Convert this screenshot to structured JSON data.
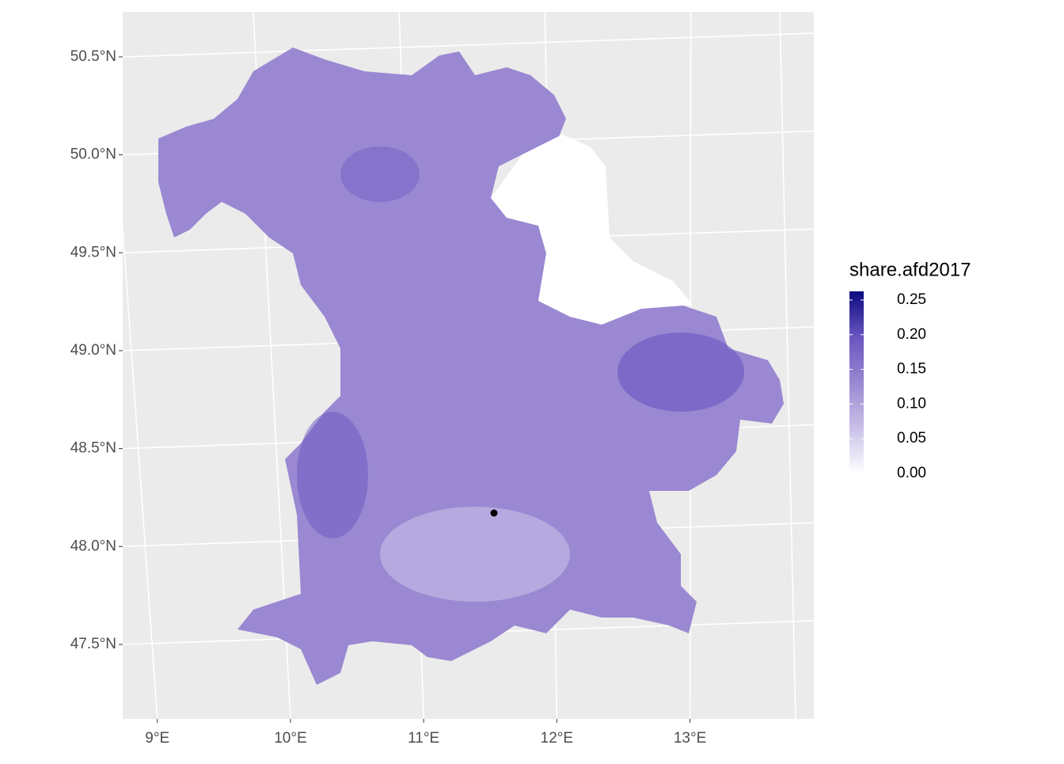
{
  "chart_data": {
    "type": "choropleth",
    "xlim": [
      8.74,
      13.93
    ],
    "ylim": [
      47.12,
      50.73
    ],
    "xticks": [
      {
        "value": 9,
        "label": "9°E"
      },
      {
        "value": 10,
        "label": "10°E"
      },
      {
        "value": 11,
        "label": "11°E"
      },
      {
        "value": 12,
        "label": "12°E"
      },
      {
        "value": 13,
        "label": "13°E"
      }
    ],
    "yticks": [
      {
        "value": 47.5,
        "label": "47.5°N"
      },
      {
        "value": 48,
        "label": "48.0°N"
      },
      {
        "value": 48.5,
        "label": "48.5°N"
      },
      {
        "value": 49,
        "label": "49.0°N"
      },
      {
        "value": 49.5,
        "label": "49.5°N"
      },
      {
        "value": 50,
        "label": "50.0°N"
      },
      {
        "value": 50.5,
        "label": "50.5°N"
      }
    ],
    "grid": true,
    "legend": {
      "title": "share.afd2017",
      "lim": [
        0,
        0.2625
      ],
      "ticks": [
        {
          "value": 0,
          "label": "0.00"
        },
        {
          "value": 0.05,
          "label": "0.05"
        },
        {
          "value": 0.1,
          "label": "0.10"
        },
        {
          "value": 0.15,
          "label": "0.15"
        },
        {
          "value": 0.2,
          "label": "0.20"
        },
        {
          "value": 0.25,
          "label": "0.25"
        }
      ],
      "colors": [
        "#ffffff",
        "#c9c0e8",
        "#9a88d2",
        "#6a55c0",
        "#0b0a80"
      ]
    }
  }
}
